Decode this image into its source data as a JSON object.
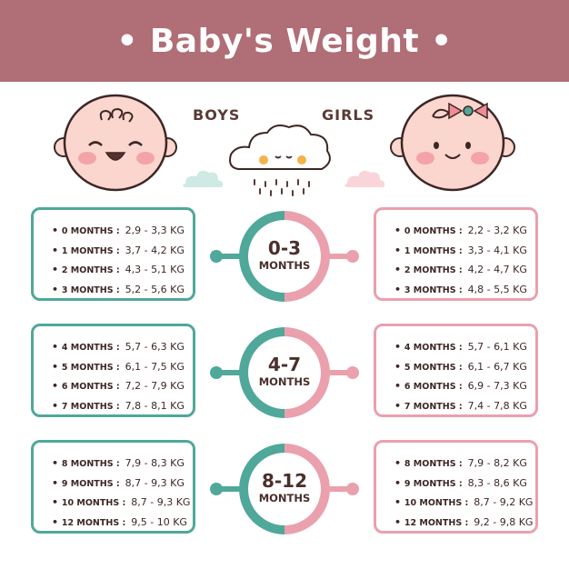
{
  "title": "• Baby's Weight •",
  "boys_label": "BOYS",
  "girls_label": "GIRLS",
  "colors": {
    "header": "#b06e76",
    "boys": "#4fa89a",
    "girls": "#eaa0ad",
    "text": "#3d2724"
  },
  "groups": [
    {
      "range": "0-3",
      "unit": "MONTHS",
      "boys": [
        {
          "age": "0 MONTHS :",
          "weight": "2,9 - 3,3 KG"
        },
        {
          "age": "1 MONTHS :",
          "weight": "3,7 - 4,2 KG"
        },
        {
          "age": "2 MONTHS :",
          "weight": "4,3 - 5,1 KG"
        },
        {
          "age": "3 MONTHS :",
          "weight": "5,2 - 5,6 KG"
        }
      ],
      "girls": [
        {
          "age": "0 MONTHS :",
          "weight": "2,2 - 3,2 KG"
        },
        {
          "age": "1 MONTHS :",
          "weight": "3,3 - 4,1 KG"
        },
        {
          "age": "2 MONTHS :",
          "weight": "4,2 - 4,7 KG"
        },
        {
          "age": "3 MONTHS :",
          "weight": "4,8 - 5,5 KG"
        }
      ]
    },
    {
      "range": "4-7",
      "unit": "MONTHS",
      "boys": [
        {
          "age": "4 MONTHS :",
          "weight": "5,7 - 6,3 KG"
        },
        {
          "age": "5 MONTHS :",
          "weight": "6,1 - 7,5 KG"
        },
        {
          "age": "6 MONTHS :",
          "weight": "7,2 - 7,9 KG"
        },
        {
          "age": "7 MONTHS :",
          "weight": "7,8 - 8,1 KG"
        }
      ],
      "girls": [
        {
          "age": "4 MONTHS :",
          "weight": "5,7 - 6,1 KG"
        },
        {
          "age": "5 MONTHS :",
          "weight": "6,1 - 6,7 KG"
        },
        {
          "age": "6 MONTHS :",
          "weight": "6,9 - 7,3 KG"
        },
        {
          "age": "7 MONTHS :",
          "weight": "7,4 - 7,8 KG"
        }
      ]
    },
    {
      "range": "8-12",
      "unit": "MONTHS",
      "boys": [
        {
          "age": "8 MONTHS :",
          "weight": "7,9 - 8,3 KG"
        },
        {
          "age": "9 MONTHS :",
          "weight": "8,7 - 9,3 KG"
        },
        {
          "age": "10 MONTHS :",
          "weight": "8,7 - 9,3 KG"
        },
        {
          "age": "12 MONTHS :",
          "weight": "9,5 - 10 KG"
        }
      ],
      "girls": [
        {
          "age": "8 MONTHS :",
          "weight": "7,9 - 8,2 KG"
        },
        {
          "age": "9 MONTHS :",
          "weight": "8,3 - 8,6 KG"
        },
        {
          "age": "10 MONTHS :",
          "weight": "8,7 - 9,2 KG"
        },
        {
          "age": "12 MONTHS :",
          "weight": "9,2 - 9,8 KG"
        }
      ]
    }
  ]
}
